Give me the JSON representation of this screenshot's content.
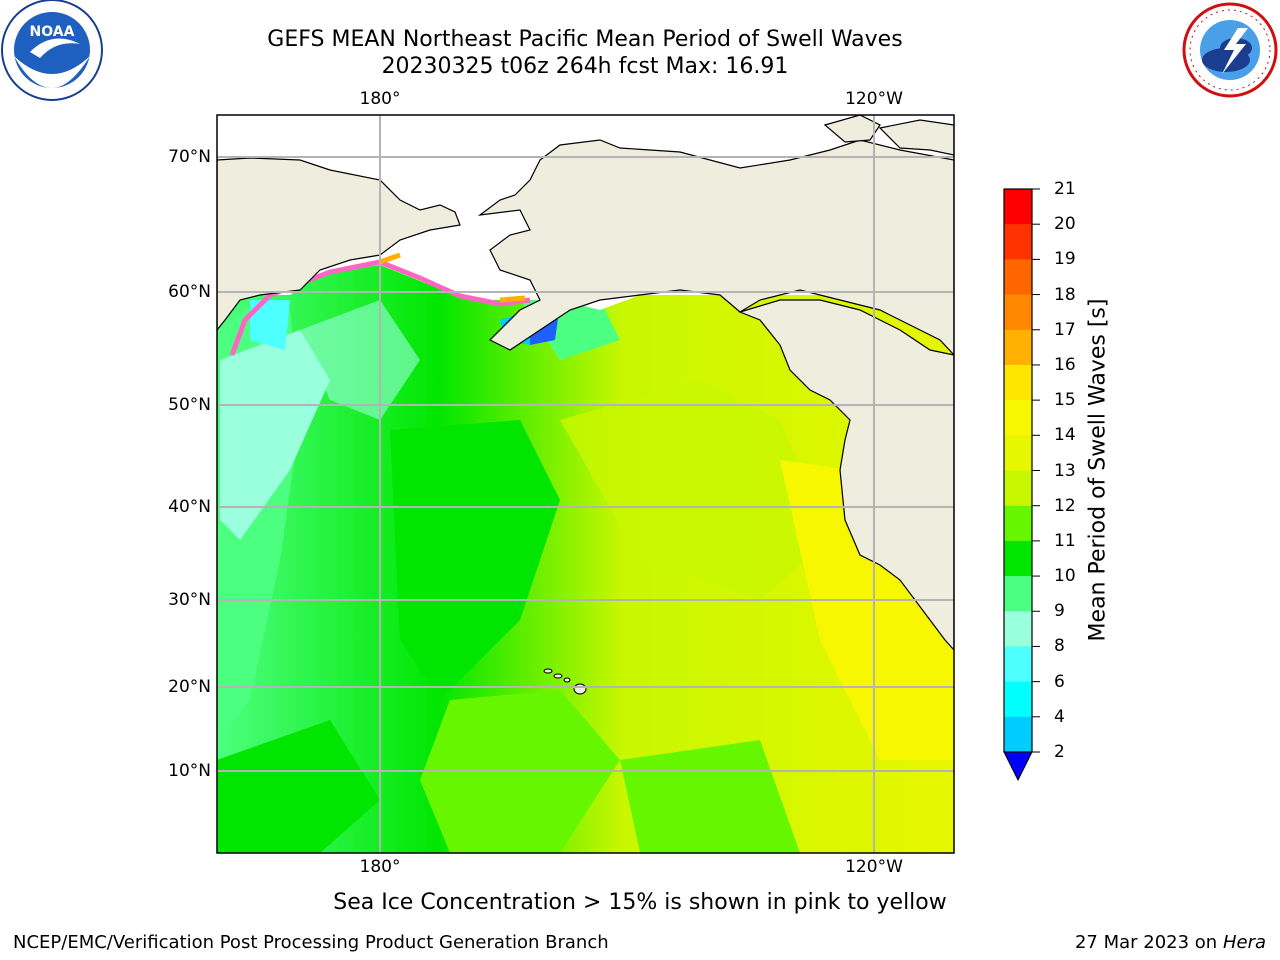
{
  "title": {
    "line1": "GEFS MEAN Northeast Pacific Mean Period of Swell Waves",
    "line2": "20230325 t06z 264h fcst   Max: 16.91"
  },
  "map": {
    "lon_labels_top": [
      "180°",
      "120°W"
    ],
    "lon_labels_bottom": [
      "180°",
      "120°W"
    ],
    "lat_labels": [
      "70°N",
      "60°N",
      "50°N",
      "40°N",
      "30°N",
      "20°N",
      "10°N"
    ],
    "colors": {
      "land": "#efedde",
      "ice_region": "#ffffff",
      "grid": "#b4b4b4",
      "coast": "#000000"
    }
  },
  "colorbar": {
    "label": "Mean Period of Swell Waves [s]",
    "tick_labels": [
      "21",
      "20",
      "19",
      "18",
      "17",
      "16",
      "15",
      "14",
      "13",
      "12",
      "11",
      "10",
      "9",
      "8",
      "6",
      "4",
      "2"
    ],
    "colors_top_to_bottom": [
      "#ff0000",
      "#ff3300",
      "#ff6600",
      "#ff8800",
      "#ffb000",
      "#ffe600",
      "#f7f700",
      "#e6f700",
      "#c8f700",
      "#66f700",
      "#00e600",
      "#4dff80",
      "#99ffdd",
      "#4dffff",
      "#00ffff",
      "#00ccff",
      "#0066ff"
    ],
    "extend_color": "#0000ff"
  },
  "footer": {
    "note": "Sea Ice Concentration > 15% is shown in pink to yellow",
    "credit": "NCEP/EMC/Verification Post Processing Product Generation Branch",
    "date": "27 Mar 2023 on",
    "host": "Hera"
  },
  "logos": {
    "noaa_text": "NOAA",
    "nws_text": "NATIONAL WEATHER SERVICE"
  }
}
